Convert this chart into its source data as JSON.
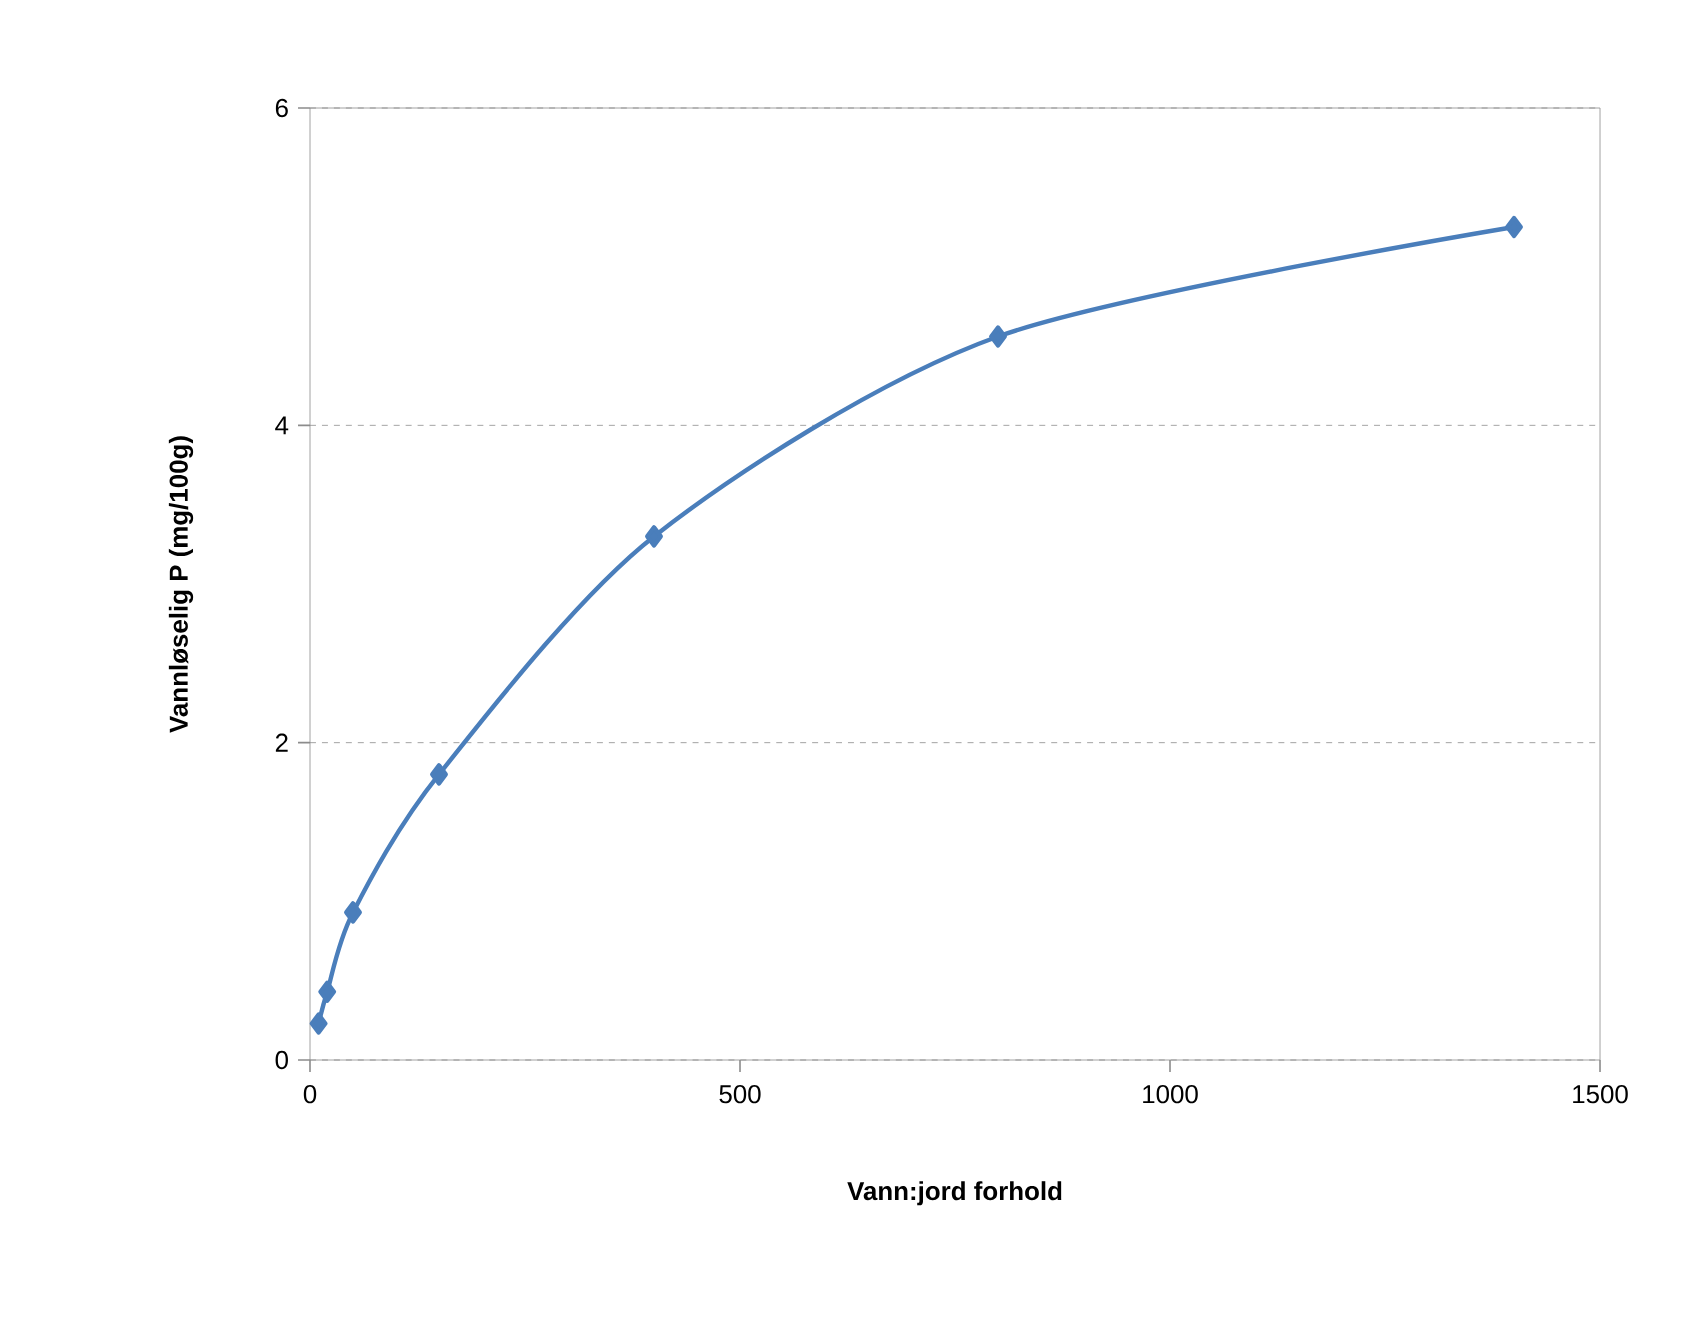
{
  "chart_data": {
    "type": "line",
    "xlabel": "Vann:jord forhold",
    "ylabel": "Vannløselig P (mg/100g)",
    "x": [
      10,
      20,
      50,
      150,
      400,
      800,
      1400
    ],
    "series": [
      {
        "color": "#4a7ebb",
        "values": [
          0.23,
          0.43,
          0.93,
          1.8,
          3.3,
          4.56,
          5.25
        ]
      }
    ],
    "xlim": [
      0,
      1500
    ],
    "xticks": [
      0,
      500,
      1000,
      1500
    ],
    "ylim": [
      0,
      6
    ],
    "yticks": [
      0,
      2,
      4,
      6
    ],
    "grid": "y",
    "marker": "diamond",
    "line_style": "solid"
  }
}
